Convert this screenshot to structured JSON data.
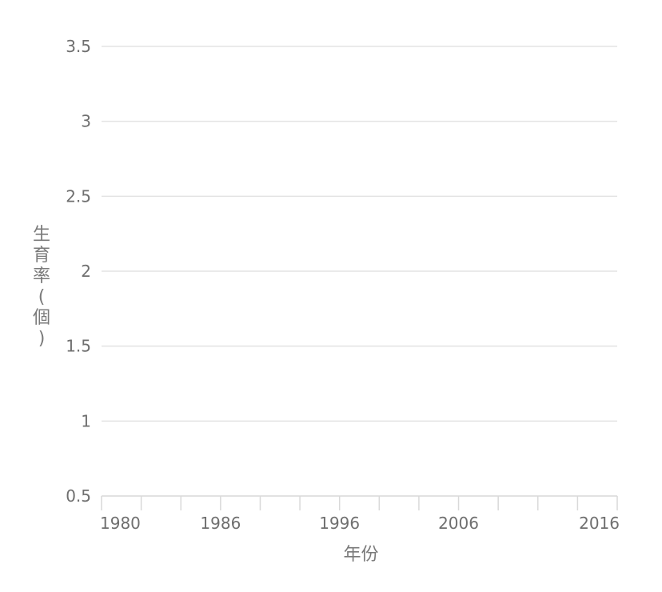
{
  "chart_data": {
    "type": "line",
    "title": "",
    "xlabel": "年份",
    "ylabel": "生育率(個)",
    "x": [],
    "series": [],
    "xlim": [
      1980,
      2016
    ],
    "ylim": [
      0.5,
      3.5
    ],
    "x_tick_labels": [
      "1980",
      "1986",
      "1996",
      "2006",
      "2016"
    ],
    "x_tick_count": 14,
    "y_ticks": [
      0.5,
      1,
      1.5,
      2,
      2.5,
      3,
      3.5
    ],
    "y_tick_labels": [
      "0.5",
      "1",
      "1.5",
      "2",
      "2.5",
      "3",
      "3.5"
    ],
    "grid": true,
    "legend": "none",
    "colors": {
      "grid": "#e3e3e3",
      "axis": "#d9d9d9",
      "tick_text": "#6f6f6f",
      "axis_title": "#7a7a7a"
    }
  }
}
